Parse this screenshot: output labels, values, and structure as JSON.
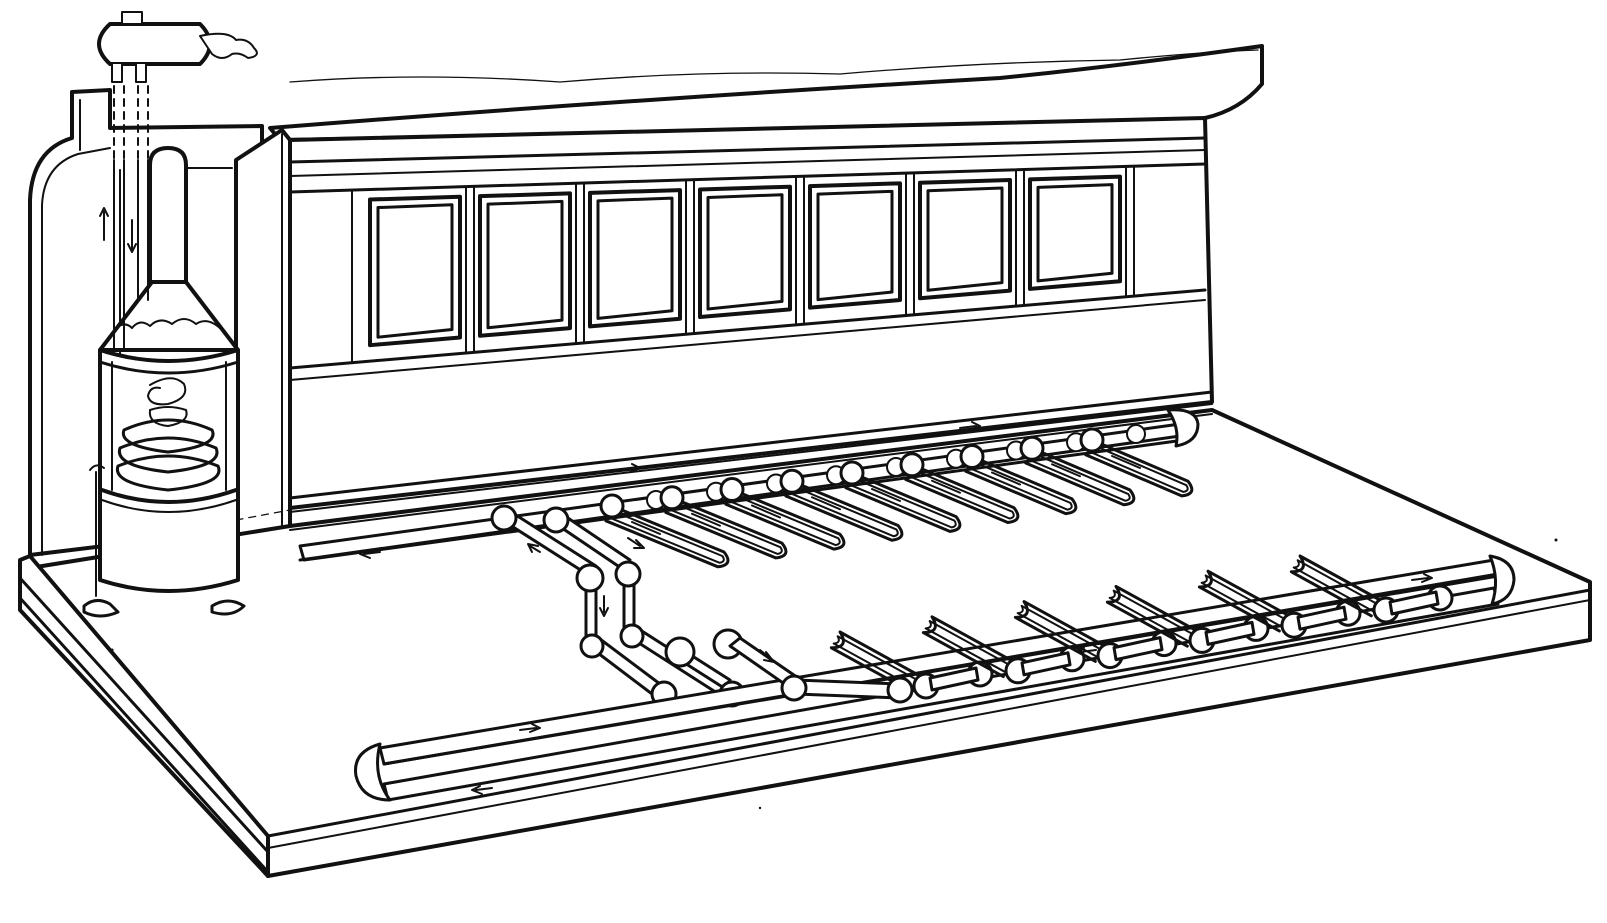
{
  "figure": {
    "subject": "railway-car-hot-water-heating-system",
    "colors": {
      "ink": "#111111",
      "paper": "#ffffff"
    }
  },
  "window_count": 7,
  "floor_loop_count": 9,
  "near_loop_count": 6
}
